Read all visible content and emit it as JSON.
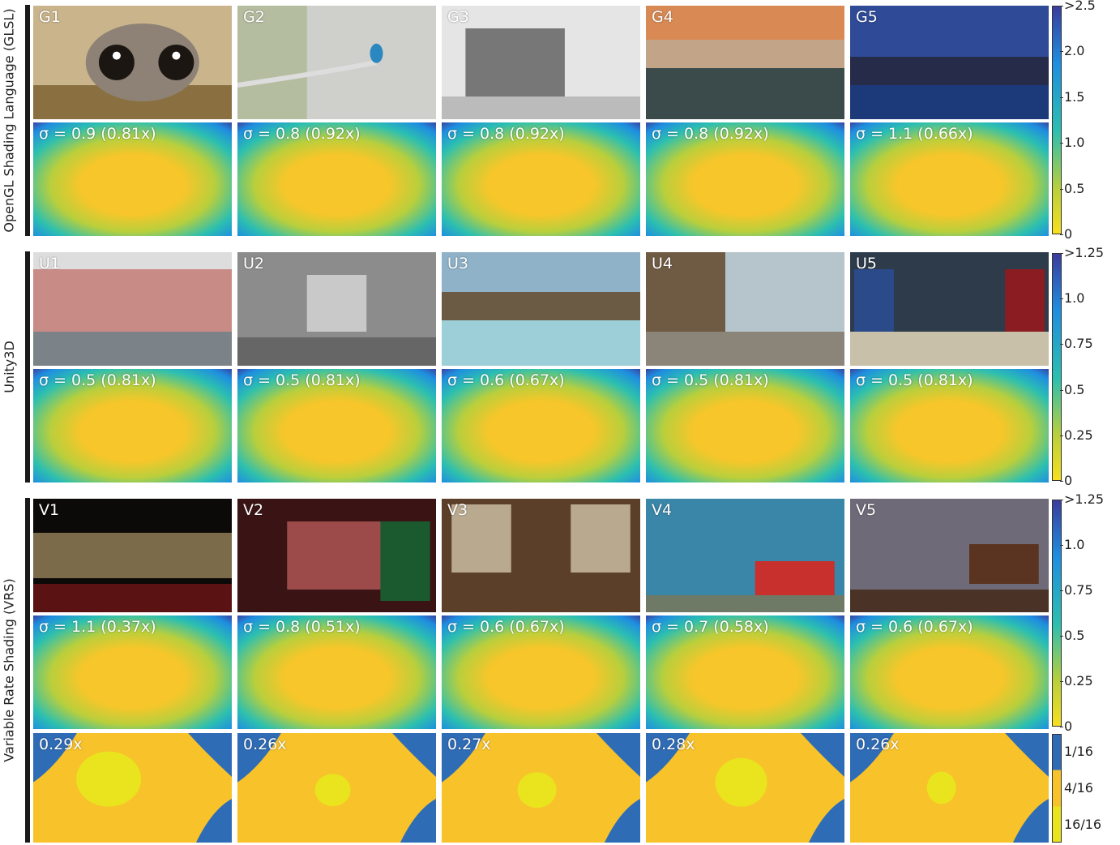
{
  "rows": {
    "glsl": {
      "group_label": "OpenGL Shading Language (GLSL)",
      "photos": [
        {
          "label": "G1",
          "scene": "cartoon-cat"
        },
        {
          "label": "G2",
          "scene": "kingfisher-branch"
        },
        {
          "label": "G3",
          "scene": "milan-cathedral"
        },
        {
          "label": "G4",
          "scene": "misty-forest"
        },
        {
          "label": "G5",
          "scene": "city-skyline-night"
        }
      ],
      "heatmaps": [
        {
          "label": "σ = 0.9 (0.81x)"
        },
        {
          "label": "σ = 0.8 (0.92x)"
        },
        {
          "label": "σ = 0.8 (0.92x)"
        },
        {
          "label": "σ = 0.8 (0.92x)"
        },
        {
          "label": "σ = 1.1 (0.66x)"
        }
      ],
      "colorbar_ticks": [
        ">2.5",
        "2.0",
        "1.5",
        "1.0",
        "0.5",
        "0"
      ]
    },
    "unity": {
      "group_label": "Unity3D",
      "photos": [
        {
          "label": "U1",
          "scene": "restaurant-interior"
        },
        {
          "label": "U2",
          "scene": "stone-street-archway"
        },
        {
          "label": "U3",
          "scene": "harbor-village"
        },
        {
          "label": "U4",
          "scene": "wooden-village-waterwheel"
        },
        {
          "label": "U5",
          "scene": "castle-hall-banners"
        }
      ],
      "heatmaps": [
        {
          "label": "σ = 0.5 (0.81x)"
        },
        {
          "label": "σ = 0.5 (0.81x)"
        },
        {
          "label": "σ = 0.6 (0.67x)"
        },
        {
          "label": "σ = 0.5 (0.81x)"
        },
        {
          "label": "σ = 0.5 (0.81x)"
        }
      ],
      "colorbar_ticks": [
        ">1.25",
        "1.0",
        "0.75",
        "0.5",
        "0.25",
        "0"
      ]
    },
    "vrs": {
      "group_label": "Variable Rate Shading (VRS)",
      "photos": [
        {
          "label": "V1",
          "scene": "dark-bar-room"
        },
        {
          "label": "V2",
          "scene": "red-lit-hall"
        },
        {
          "label": "V3",
          "scene": "porcelain-room"
        },
        {
          "label": "V4",
          "scene": "van-gogh-bedroom"
        },
        {
          "label": "V5",
          "scene": "piano-salon"
        }
      ],
      "heatmaps": [
        {
          "label": "σ = 1.1 (0.37x)"
        },
        {
          "label": "σ = 0.8 (0.51x)"
        },
        {
          "label": "σ = 0.6 (0.67x)"
        },
        {
          "label": "σ = 0.7 (0.58x)"
        },
        {
          "label": "σ = 0.6 (0.67x)"
        }
      ],
      "rate_maps": [
        {
          "label": "0.29x"
        },
        {
          "label": "0.26x"
        },
        {
          "label": "0.27x"
        },
        {
          "label": "0.28x"
        },
        {
          "label": "0.26x"
        }
      ],
      "colorbar_ticks": [
        ">1.25",
        "1.0",
        "0.75",
        "0.5",
        "0.25",
        "0"
      ],
      "rate_ticks": [
        "1/16",
        "4/16",
        "16/16"
      ]
    }
  },
  "colors": {
    "heat_center": "#f7c62a",
    "heat_mid": "#b9cf3c",
    "heat_teal": "#2cbfb0",
    "heat_blue": "#1f8ee0",
    "heat_edge": "#3a3c9c",
    "rate_blue": "#2f6cb6",
    "rate_orange": "#f8c22a",
    "rate_yellow": "#e9e41e"
  }
}
